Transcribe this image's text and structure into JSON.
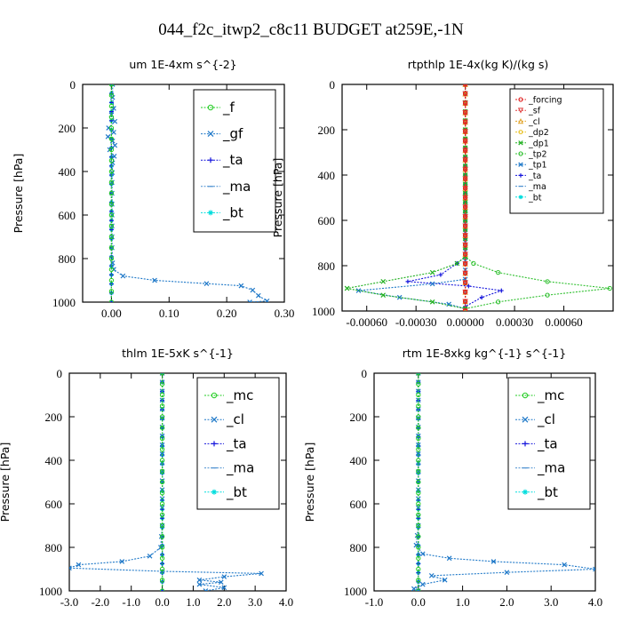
{
  "figure_title": "044_f2c_itwp2_c8c11  BUDGET at259E,-1N",
  "chart_data": [
    {
      "type": "line",
      "title": "um  1E-4xm s^{-2}",
      "ylabel": "Pressure [hPa]",
      "xlim": [
        -0.05,
        0.3
      ],
      "ylim": [
        1000,
        0
      ],
      "xticks": [
        0.0,
        0.1,
        0.2,
        0.3
      ],
      "xtick_labels": [
        "0.00",
        "0.10",
        "0.20",
        "0.30"
      ],
      "yticks": [
        0,
        200,
        400,
        600,
        800,
        1000
      ],
      "ytick_labels": [
        "0",
        "200",
        "400",
        "600",
        "800",
        "1000"
      ],
      "legend": "top-right",
      "legend_size": "big",
      "series": [
        {
          "name": "_f",
          "color": "#22cc22",
          "marker": "o",
          "points": [
            [
              0,
              0
            ],
            [
              0,
              100
            ],
            [
              0,
              200
            ],
            [
              0,
              300
            ],
            [
              0,
              400
            ],
            [
              0,
              500
            ],
            [
              0,
              600
            ],
            [
              0,
              700
            ],
            [
              0,
              800
            ],
            [
              0,
              900
            ],
            [
              0,
              1000
            ]
          ]
        },
        {
          "name": "_gf",
          "color": "#1e78c8",
          "marker": "x",
          "points": [
            [
              0.002,
              0
            ],
            [
              0.002,
              60
            ],
            [
              0.004,
              110
            ],
            [
              0.0,
              140
            ],
            [
              0.006,
              170
            ],
            [
              -0.005,
              200
            ],
            [
              0.004,
              220
            ],
            [
              -0.006,
              240
            ],
            [
              0.002,
              260
            ],
            [
              0.006,
              280
            ],
            [
              -0.003,
              300
            ],
            [
              0.005,
              330
            ],
            [
              0.002,
              360
            ],
            [
              0.001,
              450
            ],
            [
              0.001,
              600
            ],
            [
              0.001,
              750
            ],
            [
              0.002,
              820
            ],
            [
              0.004,
              850
            ],
            [
              0.02,
              880
            ],
            [
              0.075,
              900
            ],
            [
              0.165,
              915
            ],
            [
              0.225,
              925
            ],
            [
              0.245,
              945
            ],
            [
              0.255,
              970
            ],
            [
              0.27,
              995
            ],
            [
              0.24,
              1000
            ]
          ]
        },
        {
          "name": "_ta",
          "color": "#1414dc",
          "marker": "+",
          "points": [
            [
              0,
              0
            ],
            [
              0,
              500
            ],
            [
              0,
              1000
            ]
          ]
        },
        {
          "name": "_ma",
          "color": "#4a8fd0",
          "marker": "-",
          "points": [
            [
              0,
              0
            ],
            [
              0,
              500
            ],
            [
              0,
              1000
            ]
          ]
        },
        {
          "name": "_bt",
          "color": "#00dddd",
          "marker": "*",
          "points": [
            [
              0,
              0
            ],
            [
              0,
              500
            ],
            [
              0,
              1000
            ]
          ]
        }
      ]
    },
    {
      "type": "line",
      "title": "rtpthlp  1E-4x(kg K)/(kg s)",
      "ylabel": "Pressure [hPa]",
      "xlim": [
        -0.00075,
        0.0009
      ],
      "ylim": [
        1000,
        0
      ],
      "xticks": [
        -0.0006,
        -0.0003,
        0.0,
        0.0003,
        0.0006
      ],
      "xtick_labels": [
        "-0.00060",
        "-0.00030",
        "0.00000",
        "0.00030",
        "0.00060"
      ],
      "yticks": [
        0,
        200,
        400,
        600,
        800,
        1000
      ],
      "ytick_labels": [
        "0",
        "200",
        "400",
        "600",
        "800",
        "1000"
      ],
      "legend": "top-right",
      "legend_size": "small",
      "series": [
        {
          "name": "_forcing",
          "color": "#e02020",
          "marker": "o",
          "points": [
            [
              0,
              0
            ],
            [
              0,
              500
            ],
            [
              0,
              1000
            ]
          ]
        },
        {
          "name": "_sf",
          "color": "#e04040",
          "marker": "v",
          "points": [
            [
              0,
              0
            ],
            [
              0,
              500
            ],
            [
              0,
              1000
            ]
          ]
        },
        {
          "name": "_cl",
          "color": "#e0a020",
          "marker": "^",
          "points": [
            [
              0,
              0
            ],
            [
              0,
              500
            ],
            [
              0,
              1000
            ]
          ]
        },
        {
          "name": "_dp2",
          "color": "#e8c020",
          "marker": "o",
          "points": [
            [
              0,
              0
            ],
            [
              0,
              500
            ],
            [
              0,
              1000
            ]
          ]
        },
        {
          "name": "_dp1",
          "color": "#20b020",
          "marker": "x",
          "points": [
            [
              0,
              0
            ],
            [
              0,
              760
            ],
            [
              -5e-05,
              790
            ],
            [
              -0.0002,
              830
            ],
            [
              -0.0005,
              870
            ],
            [
              -0.00072,
              900
            ],
            [
              -0.0005,
              930
            ],
            [
              -0.0002,
              960
            ],
            [
              0,
              990
            ]
          ]
        },
        {
          "name": "_tp2",
          "color": "#30c030",
          "marker": "o",
          "points": [
            [
              0,
              0
            ],
            [
              0,
              760
            ],
            [
              5e-05,
              790
            ],
            [
              0.0002,
              830
            ],
            [
              0.0005,
              870
            ],
            [
              0.00088,
              900
            ],
            [
              0.0005,
              930
            ],
            [
              0.0002,
              960
            ],
            [
              0,
              990
            ]
          ]
        },
        {
          "name": "_tp1",
          "color": "#1e78c8",
          "marker": "x",
          "points": [
            [
              0,
              0
            ],
            [
              0,
              860
            ],
            [
              -0.0002,
              880
            ],
            [
              -0.00065,
              910
            ],
            [
              -0.0004,
              940
            ],
            [
              -0.0001,
              970
            ],
            [
              0,
              990
            ]
          ]
        },
        {
          "name": "_ta",
          "color": "#1414dc",
          "marker": "+",
          "points": [
            [
              0,
              0
            ],
            [
              0,
              760
            ],
            [
              -5e-05,
              790
            ],
            [
              -0.00015,
              840
            ],
            [
              -0.00035,
              870
            ],
            [
              2e-05,
              890
            ],
            [
              0.00022,
              910
            ],
            [
              0.0001,
              940
            ],
            [
              0,
              980
            ]
          ]
        },
        {
          "name": "_ma",
          "color": "#4a8fd0",
          "marker": "-",
          "points": [
            [
              0,
              0
            ],
            [
              0,
              500
            ],
            [
              0,
              1000
            ]
          ]
        },
        {
          "name": "_bt",
          "color": "#00dddd",
          "marker": "*",
          "points": [
            [
              0,
              0
            ],
            [
              0,
              500
            ],
            [
              0,
              1000
            ]
          ]
        }
      ]
    },
    {
      "type": "line",
      "title": "thlm  1E-5xK s^{-1}",
      "ylabel": "Pressure [hPa]",
      "xlim": [
        -3.0,
        4.0
      ],
      "ylim": [
        1000,
        0
      ],
      "xticks": [
        -3.0,
        -2.0,
        -1.0,
        0.0,
        1.0,
        2.0,
        3.0,
        4.0
      ],
      "xtick_labels": [
        "-3.0",
        "-2.0",
        "-1.0",
        "0.0",
        "1.0",
        "2.0",
        "3.0",
        "4.0"
      ],
      "yticks": [
        0,
        200,
        400,
        600,
        800,
        1000
      ],
      "ytick_labels": [
        "0",
        "200",
        "400",
        "600",
        "800",
        "1000"
      ],
      "legend": "top-right",
      "legend_size": "big",
      "series": [
        {
          "name": "_mc",
          "color": "#22cc22",
          "marker": "o",
          "points": [
            [
              0,
              0
            ],
            [
              0,
              100
            ],
            [
              0,
              200
            ],
            [
              0,
              300
            ],
            [
              0,
              400
            ],
            [
              0,
              500
            ],
            [
              0,
              600
            ],
            [
              0,
              700
            ],
            [
              0,
              800
            ],
            [
              0,
              900
            ],
            [
              0,
              1000
            ]
          ]
        },
        {
          "name": "_cl",
          "color": "#1e78c8",
          "marker": "x",
          "points": [
            [
              0,
              0
            ],
            [
              0,
              700
            ],
            [
              -0.05,
              800
            ],
            [
              -0.4,
              840
            ],
            [
              -1.3,
              865
            ],
            [
              -2.7,
              880
            ],
            [
              -3.0,
              895
            ],
            [
              0.0,
              910
            ],
            [
              3.2,
              920
            ],
            [
              2.0,
              935
            ],
            [
              1.2,
              950
            ],
            [
              1.9,
              960
            ],
            [
              1.2,
              970
            ],
            [
              2.0,
              985
            ],
            [
              1.4,
              1000
            ]
          ]
        },
        {
          "name": "_ta",
          "color": "#1414dc",
          "marker": "+",
          "points": [
            [
              0,
              0
            ],
            [
              0,
              500
            ],
            [
              0,
              1000
            ]
          ]
        },
        {
          "name": "_ma",
          "color": "#4a8fd0",
          "marker": "-",
          "points": [
            [
              0,
              0
            ],
            [
              0,
              500
            ],
            [
              0,
              1000
            ]
          ]
        },
        {
          "name": "_bt",
          "color": "#00dddd",
          "marker": "*",
          "points": [
            [
              0,
              0
            ],
            [
              0,
              500
            ],
            [
              0,
              1000
            ]
          ]
        }
      ]
    },
    {
      "type": "line",
      "title": "rtm  1E-8xkg kg^{-1} s^{-1}",
      "ylabel": "Pressure [hPa]",
      "xlim": [
        -1.0,
        4.0
      ],
      "ylim": [
        1000,
        0
      ],
      "xticks": [
        -1.0,
        0.0,
        1.0,
        2.0,
        3.0,
        4.0
      ],
      "xtick_labels": [
        "-1.0",
        "0.0",
        "1.0",
        "2.0",
        "3.0",
        "4.0"
      ],
      "yticks": [
        0,
        200,
        400,
        600,
        800,
        1000
      ],
      "ytick_labels": [
        "0",
        "200",
        "400",
        "600",
        "800",
        "1000"
      ],
      "legend": "top-right",
      "legend_size": "big",
      "series": [
        {
          "name": "_mc",
          "color": "#22cc22",
          "marker": "o",
          "points": [
            [
              0,
              0
            ],
            [
              0,
              100
            ],
            [
              0,
              200
            ],
            [
              0,
              300
            ],
            [
              0,
              400
            ],
            [
              0,
              500
            ],
            [
              0,
              600
            ],
            [
              0,
              700
            ],
            [
              0,
              800
            ],
            [
              0,
              900
            ],
            [
              0,
              1000
            ]
          ]
        },
        {
          "name": "_cl",
          "color": "#1e78c8",
          "marker": "x",
          "points": [
            [
              0,
              0
            ],
            [
              0,
              700
            ],
            [
              -0.05,
              790
            ],
            [
              0.1,
              830
            ],
            [
              0.7,
              850
            ],
            [
              1.7,
              865
            ],
            [
              3.3,
              880
            ],
            [
              4.0,
              900
            ],
            [
              2.0,
              915
            ],
            [
              0.3,
              930
            ],
            [
              0.6,
              950
            ],
            [
              0.1,
              970
            ],
            [
              -0.1,
              990
            ],
            [
              0,
              1000
            ]
          ]
        },
        {
          "name": "_ta",
          "color": "#1414dc",
          "marker": "+",
          "points": [
            [
              0,
              0
            ],
            [
              0,
              500
            ],
            [
              0,
              1000
            ]
          ]
        },
        {
          "name": "_ma",
          "color": "#4a8fd0",
          "marker": "-",
          "points": [
            [
              0,
              0
            ],
            [
              0,
              500
            ],
            [
              0,
              1000
            ]
          ]
        },
        {
          "name": "_bt",
          "color": "#00dddd",
          "marker": "*",
          "points": [
            [
              0,
              0
            ],
            [
              0,
              500
            ],
            [
              0,
              1000
            ]
          ]
        }
      ]
    }
  ]
}
